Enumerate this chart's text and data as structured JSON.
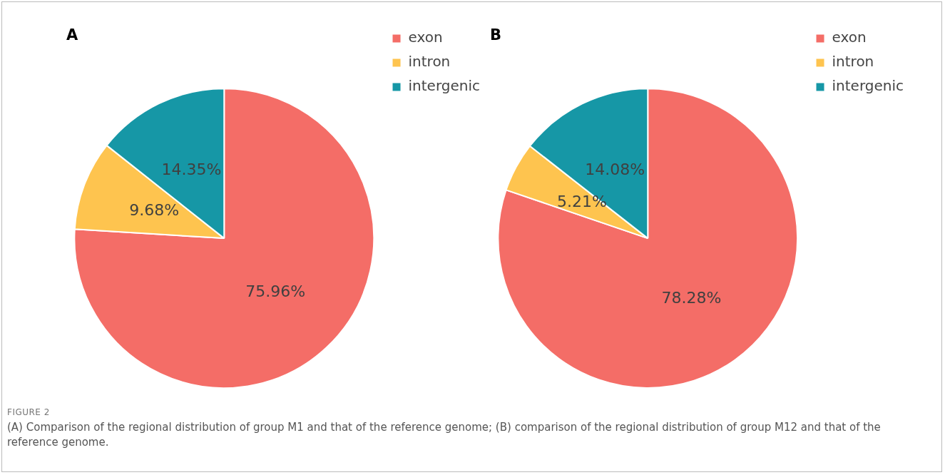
{
  "chart_data": [
    {
      "type": "pie",
      "title": "A",
      "categories": [
        "exon",
        "intron",
        "intergenic"
      ],
      "values": [
        75.96,
        9.68,
        14.35
      ],
      "value_labels": [
        "75.96%",
        "9.68%",
        "14.35%"
      ],
      "colors": [
        "#f46d67",
        "#fec44f",
        "#1697a6"
      ],
      "legend": "top right",
      "annotations": [
        "FIGURE 2",
        "(A) Comparison of the regional distribution of group M1 and that of the reference genome; (B) comparison of the regional distribution of group M12 and that of the reference genome."
      ]
    },
    {
      "type": "pie",
      "title": "B",
      "categories": [
        "exon",
        "intron",
        "intergenic"
      ],
      "values": [
        78.28,
        5.21,
        14.08
      ],
      "value_labels": [
        "78.28%",
        "5.21%",
        "14.08%"
      ],
      "colors": [
        "#f46d67",
        "#fec44f",
        "#1697a6"
      ],
      "legend": "top right"
    }
  ]
}
